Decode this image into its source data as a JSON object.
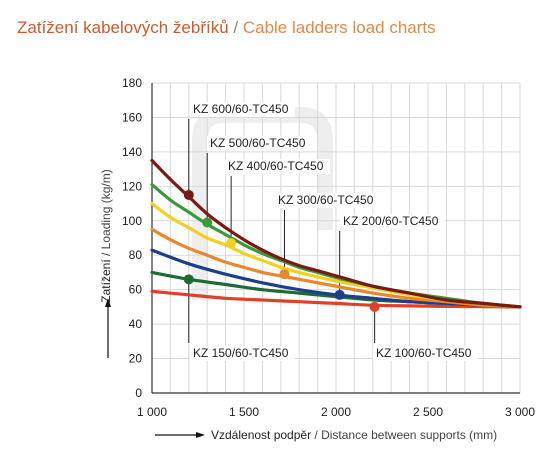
{
  "title": {
    "cz": "Zatížení kabelových žebříků",
    "sep": " / ",
    "en": "Cable ladders load charts"
  },
  "chart_data": {
    "type": "line",
    "xlabel_cz": "Vzdálenost podpěr",
    "xlabel_en": "Distance between supports (mm)",
    "ylabel_cz": "Zatížení",
    "ylabel_en": "Loading (kg/m)",
    "xlim": [
      1000,
      3000
    ],
    "ylim": [
      0,
      180
    ],
    "x_ticks": [
      1000,
      1500,
      2000,
      2500,
      3000
    ],
    "x_tick_labels": [
      "1 000",
      "1 500",
      "2 000",
      "2 500",
      "3 000"
    ],
    "y_ticks": [
      0,
      20,
      40,
      60,
      80,
      100,
      120,
      140,
      160,
      180
    ],
    "y_tick_labels": [
      "0",
      "20",
      "40",
      "60",
      "80",
      "100",
      "120",
      "140",
      "160",
      "180"
    ],
    "grid": true,
    "series": [
      {
        "name": "KZ 600/60-TC450",
        "color": "#7a1a14",
        "x": [
          1000,
          1100,
          1200,
          1300,
          1400,
          1500,
          1600,
          1700,
          1800,
          1900,
          2000,
          2100,
          2200,
          2400,
          2600,
          2800,
          3000
        ],
        "y": [
          135,
          124,
          114,
          104,
          96,
          89,
          83,
          78,
          74,
          71,
          68,
          65,
          62,
          58,
          54,
          52,
          50
        ],
        "marker": {
          "x": 1200,
          "y": 115
        }
      },
      {
        "name": "KZ 500/60-TC450",
        "color": "#3a9a3a",
        "x": [
          1000,
          1100,
          1200,
          1300,
          1400,
          1500,
          1600,
          1700,
          1800,
          1900,
          2000,
          2200,
          2400,
          2600,
          2800,
          3000
        ],
        "y": [
          121,
          112,
          105,
          98,
          92,
          86,
          81,
          77,
          73,
          70,
          67,
          62,
          58,
          55,
          52,
          50
        ],
        "marker": {
          "x": 1300,
          "y": 99
        }
      },
      {
        "name": "KZ 400/60-TC450",
        "color": "#f2d020",
        "x": [
          1000,
          1100,
          1200,
          1300,
          1400,
          1500,
          1600,
          1700,
          1800,
          2000,
          2200,
          2400,
          2600,
          2800,
          3000
        ],
        "y": [
          110,
          102,
          96,
          90,
          86,
          81,
          77,
          73,
          70,
          65,
          61,
          57,
          54,
          52,
          50
        ],
        "marker": {
          "x": 1430,
          "y": 87
        }
      },
      {
        "name": "KZ 300/60-TC450",
        "color": "#e8872e",
        "x": [
          1000,
          1100,
          1200,
          1300,
          1400,
          1500,
          1600,
          1700,
          1800,
          2000,
          2200,
          2400,
          2600,
          2800,
          3000
        ],
        "y": [
          95,
          89,
          84,
          80,
          76,
          73,
          70,
          68,
          66,
          62,
          58,
          55,
          53,
          51,
          50
        ],
        "marker": {
          "x": 1720,
          "y": 69
        }
      },
      {
        "name": "KZ 200/60-TC450",
        "color": "#1d3f8a",
        "x": [
          1000,
          1200,
          1400,
          1600,
          1800,
          2000,
          2200,
          2400,
          2600,
          2800,
          3000
        ],
        "y": [
          83,
          75,
          69,
          64,
          60,
          57,
          55,
          53,
          52,
          51,
          50
        ],
        "marker": {
          "x": 2020,
          "y": 57
        }
      },
      {
        "name": "KZ 150/60-TC450",
        "color": "#1f6b35",
        "x": [
          1000,
          1200,
          1400,
          1600,
          1800,
          2000,
          2200,
          2400,
          2600,
          2800,
          3000
        ],
        "y": [
          70,
          66,
          63,
          60,
          58,
          56,
          54,
          53,
          52,
          51,
          50
        ],
        "marker": {
          "x": 1200,
          "y": 66
        }
      },
      {
        "name": "KZ 100/60-TC450",
        "color": "#e0402a",
        "x": [
          1000,
          1200,
          1400,
          1600,
          1800,
          2000,
          2200,
          2400,
          2600,
          2800,
          3000
        ],
        "y": [
          59,
          57,
          55,
          54,
          53,
          52,
          51,
          50.6,
          50.3,
          50.1,
          50
        ],
        "marker": {
          "x": 2210,
          "y": 50
        }
      }
    ],
    "labels": [
      {
        "text": "KZ 600/60-TC450",
        "series": 0
      },
      {
        "text": "KZ 500/60-TC450",
        "series": 1
      },
      {
        "text": "KZ 400/60-TC450",
        "series": 2
      },
      {
        "text": "KZ 300/60-TC450",
        "series": 3
      },
      {
        "text": "KZ 200/60-TC450",
        "series": 4
      },
      {
        "text": "KZ 150/60-TC450",
        "series": 5
      },
      {
        "text": "KZ 100/60-TC450",
        "series": 6
      }
    ]
  }
}
